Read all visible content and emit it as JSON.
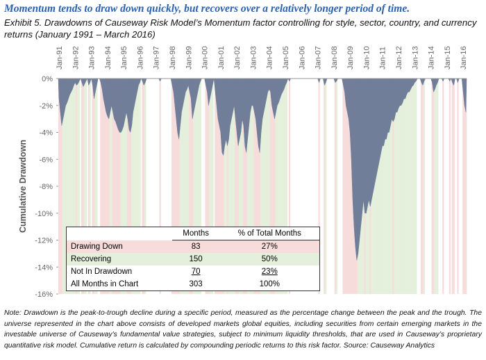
{
  "headline": "Momentum tends to draw down quickly, but recovers over a relatively longer period of time.",
  "chart_data": {
    "type": "area",
    "title": "Exhibit 5. Drawdowns of Causeway Risk Model’s Momentum factor controlling for style, sector, country, and currency returns (January 1991 – March 2016)",
    "y_label": "Cumulative Drawdown",
    "color": "#6a7896",
    "band_colors": {
      "drawing_down": "#f7dcdc",
      "recovering": "#e5f0dc"
    },
    "ylim": [
      -16,
      0
    ],
    "yticks": [
      {
        "value": 0,
        "label": "0%"
      },
      {
        "value": -2,
        "label": "-2%"
      },
      {
        "value": -4,
        "label": "-4%"
      },
      {
        "value": -6,
        "label": "-6%"
      },
      {
        "value": -8,
        "label": "-8%"
      },
      {
        "value": -10,
        "label": "-10%"
      },
      {
        "value": -12,
        "label": "-12%"
      },
      {
        "value": -14,
        "label": "-14%"
      },
      {
        "value": -16,
        "label": "-16%"
      }
    ],
    "grid": false,
    "categories": [
      "Jan-91",
      null,
      null,
      null,
      null,
      null,
      null,
      null,
      null,
      null,
      null,
      null,
      "Jan-92",
      null,
      null,
      null,
      null,
      null,
      null,
      null,
      null,
      null,
      null,
      null,
      "Jan-93",
      null,
      null,
      null,
      null,
      null,
      null,
      null,
      null,
      null,
      null,
      null,
      "Jan-94",
      null,
      null,
      null,
      null,
      null,
      null,
      null,
      null,
      null,
      null,
      null,
      "Jan-95",
      null,
      null,
      null,
      null,
      null,
      null,
      null,
      null,
      null,
      null,
      null,
      "Jan-96",
      null,
      null,
      null,
      null,
      null,
      null,
      null,
      null,
      null,
      null,
      null,
      "Jan-97",
      null,
      null,
      null,
      null,
      null,
      null,
      null,
      null,
      null,
      null,
      null,
      "Jan-98",
      null,
      null,
      null,
      null,
      null,
      null,
      null,
      null,
      null,
      null,
      null,
      "Jan-99",
      null,
      null,
      null,
      null,
      null,
      null,
      null,
      null,
      null,
      null,
      null,
      "Jan-00",
      null,
      null,
      null,
      null,
      null,
      null,
      null,
      null,
      null,
      null,
      null,
      "Jan-01",
      null,
      null,
      null,
      null,
      null,
      null,
      null,
      null,
      null,
      null,
      null,
      "Jan-02",
      null,
      null,
      null,
      null,
      null,
      null,
      null,
      null,
      null,
      null,
      null,
      "Jan-03",
      null,
      null,
      null,
      null,
      null,
      null,
      null,
      null,
      null,
      null,
      null,
      "Jan-04",
      null,
      null,
      null,
      null,
      null,
      null,
      null,
      null,
      null,
      null,
      null,
      "Jan-05",
      null,
      null,
      null,
      null,
      null,
      null,
      null,
      null,
      null,
      null,
      null,
      "Jan-06",
      null,
      null,
      null,
      null,
      null,
      null,
      null,
      null,
      null,
      null,
      null,
      "Jan-07",
      null,
      null,
      null,
      null,
      null,
      null,
      null,
      null,
      null,
      null,
      null,
      "Jan-08",
      null,
      null,
      null,
      null,
      null,
      null,
      null,
      null,
      null,
      null,
      null,
      "Jan-09",
      null,
      null,
      null,
      null,
      null,
      null,
      null,
      null,
      null,
      null,
      null,
      "Jan-10",
      null,
      null,
      null,
      null,
      null,
      null,
      null,
      null,
      null,
      null,
      null,
      "Jan-11",
      null,
      null,
      null,
      null,
      null,
      null,
      null,
      null,
      null,
      null,
      null,
      "Jan-12",
      null,
      null,
      null,
      null,
      null,
      null,
      null,
      null,
      null,
      null,
      null,
      "Jan-13",
      null,
      null,
      null,
      null,
      null,
      null,
      null,
      null,
      null,
      null,
      null,
      "Jan-14",
      null,
      null,
      null,
      null,
      null,
      null,
      null,
      null,
      null,
      null,
      null,
      "Jan-15",
      null,
      null,
      null,
      null,
      null,
      null,
      null,
      null,
      null,
      null,
      null,
      "Jan-16",
      null,
      null
    ],
    "values": [
      -1.5,
      -2.5,
      -3.5,
      -3,
      -2.5,
      -2,
      -1.8,
      -1.5,
      -1.2,
      -1,
      -0.8,
      -0.5,
      -0.3,
      -0.5,
      -0.4,
      -0.2,
      0,
      -0.3,
      -0.6,
      -0.4,
      -0.2,
      0,
      -0.5,
      -0.3,
      0,
      -0.5,
      -1.5,
      -1,
      -0.5,
      0,
      0,
      -0.3,
      -0.8,
      -1.5,
      -2,
      -2.5,
      -2.8,
      -3,
      -2.5,
      -2,
      -2.5,
      -3,
      -3.2,
      -3.5,
      -3.8,
      -4,
      -4,
      -3.8,
      -3.5,
      -3,
      -2.5,
      -3,
      -3.8,
      -4,
      -3.5,
      -2.5,
      -2,
      -1.5,
      -1,
      -0.5,
      -0.3,
      0,
      -0.2,
      -0.5,
      -0.3,
      0,
      0,
      0,
      0,
      0,
      0,
      0,
      0,
      0,
      0,
      -0.2,
      0,
      0,
      0,
      0,
      0,
      0,
      0,
      0,
      -0.5,
      -1,
      -2,
      -3,
      -4,
      -4.5,
      -3.5,
      -2.5,
      -2,
      -1.5,
      -1,
      -0.8,
      -0.5,
      -1,
      -1.5,
      -3,
      -2.5,
      -2,
      -1.5,
      -1,
      -0.5,
      -0.2,
      0,
      0,
      0,
      -0.5,
      -1,
      -2,
      -1.5,
      -1,
      -0.5,
      0,
      -1,
      -2,
      -3,
      -3.5,
      -4,
      -5.5,
      -5.7,
      -5,
      -4.5,
      -5,
      -4.5,
      -3.5,
      -3,
      -2.5,
      -2,
      -3,
      -4,
      -5,
      -4.5,
      -4,
      -3,
      -3.5,
      -5,
      -5.5,
      -4.5,
      -3.5,
      -2.5,
      -2,
      -2,
      -2.5,
      -3,
      -4,
      -5,
      -5.5,
      -4,
      -3,
      -2.5,
      -2,
      -1.5,
      -1,
      -0.8,
      -1,
      -2,
      -2.5,
      -3,
      -2.5,
      -2,
      -1.8,
      -1.5,
      -1.2,
      -1,
      -0.8,
      -0.5,
      -0.3,
      0,
      -0.2,
      0,
      0,
      0,
      0,
      0,
      0,
      0,
      0,
      0,
      0,
      0,
      0,
      0,
      0,
      0,
      0,
      0,
      0,
      0,
      0,
      0,
      -0.3,
      0,
      0,
      0,
      -0.5,
      -0.3,
      0,
      0,
      0,
      0,
      0,
      0,
      -0.3,
      -0.2,
      0,
      0,
      0,
      0,
      -0.5,
      -1,
      -2,
      -2.5,
      -3,
      -4,
      -6,
      -9,
      -11,
      -12.5,
      -13.5,
      -13,
      -12,
      -11,
      -10,
      -9,
      -10,
      -10,
      -9.5,
      -9,
      -9.5,
      -9,
      -8.5,
      -8,
      -7.5,
      -7,
      -6.5,
      -6,
      -5.5,
      -5,
      -5,
      -4.5,
      -4.5,
      -4,
      -4,
      -3.5,
      -3,
      -3.2,
      -3,
      -2.5,
      -2.5,
      -2.2,
      -2,
      -2,
      -1.8,
      -1.5,
      -1.5,
      -1.2,
      -1,
      -1,
      -0.8,
      -0.6,
      -0.5,
      -0.3,
      -0.2,
      0,
      0,
      0,
      -0.3,
      -0.5,
      -0.2,
      0,
      0,
      0,
      0,
      0,
      -0.3,
      -1,
      -0.8,
      -0.5,
      -0.3,
      0,
      0,
      0,
      -0.2,
      0,
      0,
      0,
      0,
      -0.2,
      0,
      -0.3,
      -0.5,
      0,
      0,
      -0.3,
      0,
      0,
      0,
      -1,
      -2,
      -2.5
    ]
  },
  "table": {
    "columns": [
      "Months",
      "% of Total Months"
    ],
    "rows": [
      [
        "Drawing Down",
        "83",
        "27%"
      ],
      [
        "Recovering",
        "150",
        "50%"
      ],
      [
        "Not In Drawdown",
        "70",
        "23%"
      ],
      [
        "All Months in Chart",
        "303",
        "100%"
      ]
    ]
  },
  "note": "Note: Drawdown is the peak-to-trough decline during a specific period, measured as the percentage change between the peak and the trough. The universe represented in the chart above consists of developed markets global equities, including securities from certain emerging markets in the investable universe of Causeway’s fundamental value strategies, subject to minimum liquidity thresholds, that are used in Causeway’s proprietary quantitative risk model. Cumulative return is calculated by compounding periodic returns to this risk factor. Source: Causeway Analytics"
}
